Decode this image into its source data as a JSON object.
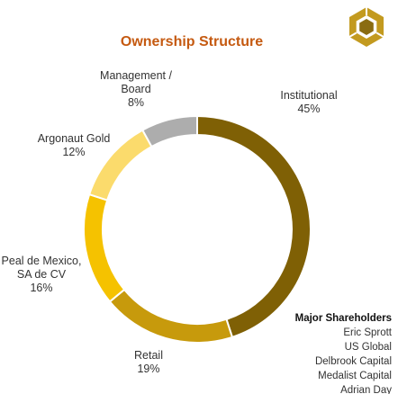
{
  "chart_data": {
    "type": "pie",
    "title": "Ownership Structure",
    "slices": [
      {
        "label_lines": [
          "Institutional",
          "45%"
        ],
        "value": 45,
        "color": "#7f6005"
      },
      {
        "label_lines": [
          "Retail",
          "19%"
        ],
        "value": 19,
        "color": "#c79a0c"
      },
      {
        "label_lines": [
          "Peal de Mexico,",
          "SA de CV",
          "16%"
        ],
        "value": 16,
        "color": "#f5c200"
      },
      {
        "label_lines": [
          "Argonaut Gold",
          "12%"
        ],
        "value": 12,
        "color": "#fbdb6c"
      },
      {
        "label_lines": [
          "Management /",
          "Board",
          "8%"
        ],
        "value": 8,
        "color": "#adadad"
      }
    ]
  },
  "shareholders": {
    "title": "Major Shareholders",
    "names": [
      "Eric Sprott",
      "US Global",
      "Delbrook Capital",
      "Medalist Capital",
      "Adrian Day"
    ]
  },
  "colors": {
    "title": "#c55a11",
    "logo_outer": "#c39a1f",
    "logo_inner": "#8a6c12"
  },
  "logo": {
    "icon": "hexagon-logo-icon"
  }
}
